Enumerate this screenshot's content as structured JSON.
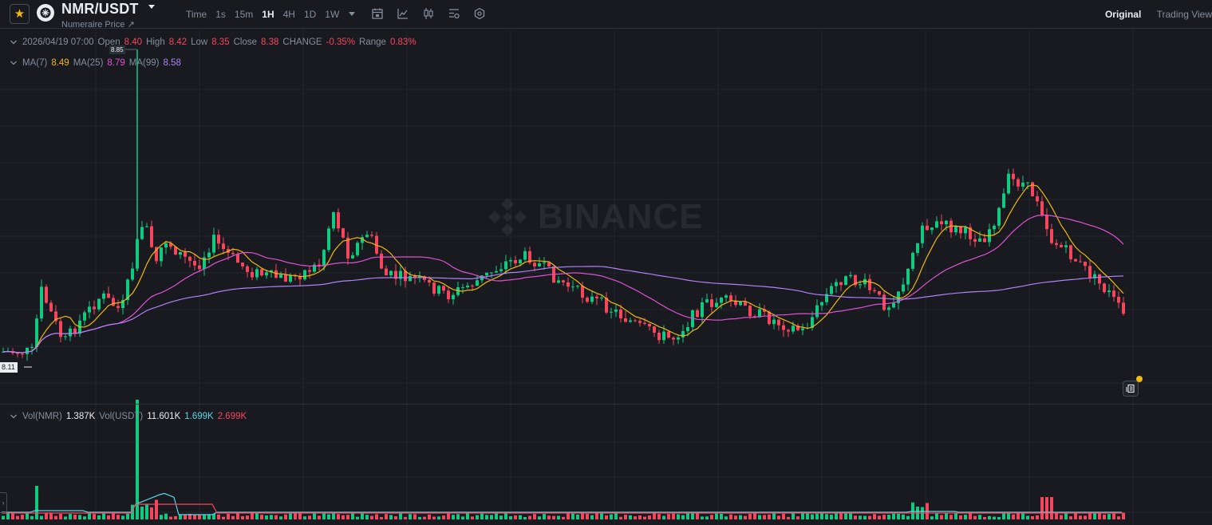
{
  "header": {
    "symbol": "NMR/USDT",
    "subtitle": "Numeraire Price ↗",
    "intervals": [
      "Time",
      "1s",
      "15m",
      "1H",
      "4H",
      "1D",
      "1W"
    ],
    "active_interval": "1H",
    "view_tabs": [
      "Original",
      "Trading View"
    ],
    "active_view": "Original"
  },
  "ohlc": {
    "date": "2026/04/19 07:00",
    "open_label": "Open",
    "open": "8.40",
    "high_label": "High",
    "high": "8.42",
    "low_label": "Low",
    "low": "8.35",
    "close_label": "Close",
    "close": "8.38",
    "change_label": "CHANGE",
    "change": "-0.35%",
    "range_label": "Range",
    "range": "0.83%"
  },
  "ma": {
    "ma7_label": "MA(7)",
    "ma7": "8.49",
    "ma25_label": "MA(25)",
    "ma25": "8.79",
    "ma99_label": "MA(99)",
    "ma99": "8.58"
  },
  "volume": {
    "vol_base_label": "Vol(NMR)",
    "vol_base": "1.387K",
    "vol_quote_label": "Vol(USDT)",
    "vol_quote": "11.601K",
    "ma_short": "1.699K",
    "ma_long": "2.699K"
  },
  "price_tags": {
    "current": "8.11",
    "high": "8.85"
  },
  "watermark": "BINANCE",
  "colors": {
    "up": "#0ecb81",
    "down": "#f6465d",
    "ma7": "#f0b90b",
    "ma25": "#e052d3",
    "ma99": "#b281f7",
    "vol_ma_short": "#5fd3e4",
    "vol_ma_long": "#f6465d",
    "background": "#181a20",
    "grid": "#23272e"
  },
  "icons": [
    "star-icon",
    "nmr-logo-icon",
    "calendar-icon",
    "line-chart-icon",
    "candle-type-icon",
    "indicator-settings-icon",
    "hexagon-settings-icon",
    "notes-icon",
    "chevron-down-icon",
    "chevron-left-icon",
    "binance-logo-icon"
  ],
  "chart_data": {
    "type": "candlestick",
    "interval": "1H",
    "last_bar": {
      "time": "2026/04/19 07:00",
      "open": 8.4,
      "high": 8.42,
      "low": 8.35,
      "close": 8.38
    },
    "period_high": 8.85,
    "moving_averages": [
      {
        "name": "MA(7)",
        "value": 8.49
      },
      {
        "name": "MA(25)",
        "value": 8.79
      },
      {
        "name": "MA(99)",
        "value": 8.58
      }
    ],
    "volume_series": [
      {
        "name": "Vol(NMR)",
        "value": "1.387K"
      },
      {
        "name": "Vol(USDT)",
        "value": "11.601K"
      }
    ],
    "grid": true
  }
}
